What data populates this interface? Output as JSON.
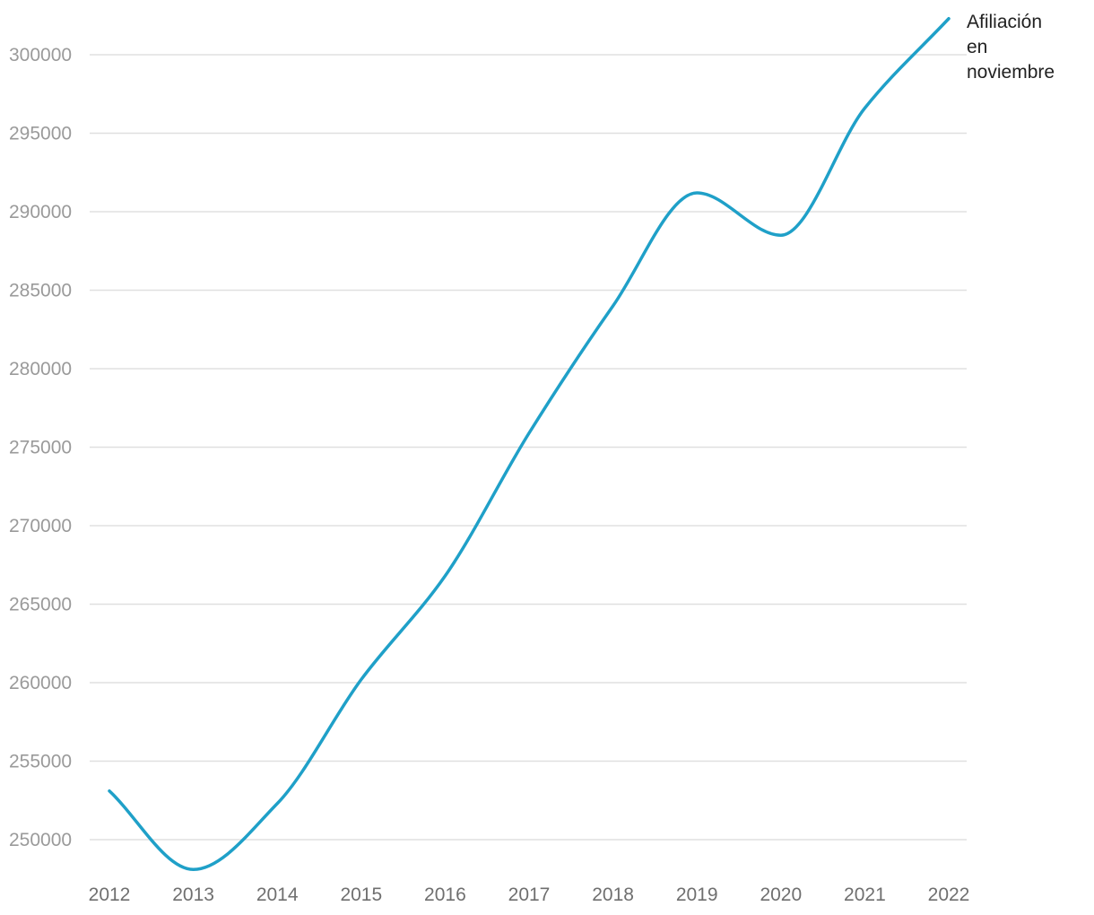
{
  "chart_data": {
    "type": "line",
    "title": "",
    "xlabel": "",
    "ylabel": "",
    "x": [
      2012,
      2013,
      2014,
      2015,
      2016,
      2017,
      2018,
      2019,
      2020,
      2021,
      2022
    ],
    "series": [
      {
        "name": "Afiliación en noviembre",
        "name_lines": [
          "Afiliación",
          "en",
          "noviembre"
        ],
        "color": "#1fa0c8",
        "values": [
          253100,
          248100,
          252300,
          260200,
          266800,
          275900,
          284000,
          291200,
          288500,
          296600,
          302300
        ]
      }
    ],
    "y_ticks": [
      250000,
      255000,
      260000,
      265000,
      270000,
      275000,
      280000,
      285000,
      290000,
      295000,
      300000
    ],
    "x_ticks": [
      "2012",
      "2013",
      "2014",
      "2015",
      "2016",
      "2017",
      "2018",
      "2019",
      "2020",
      "2021",
      "2022"
    ],
    "ylim": [
      248100,
      302300
    ],
    "grid": true,
    "legend": "end-of-line label"
  }
}
